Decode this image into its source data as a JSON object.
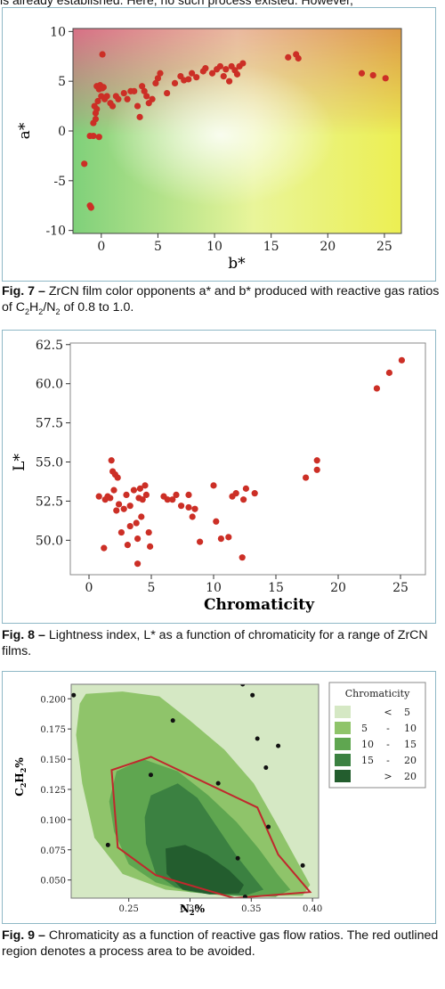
{
  "top_line": "is already established. Here, no such process existed. However,",
  "figures": [
    {
      "caption_label": "Fig. 7 –",
      "caption_text": "ZrCN film color opponents a* and b* produced with reactive gas ratios of C2H2/N2 of 0.8 to 1.0.",
      "caption_parts": {
        "before": "ZrCN film color opponents a* and b* produced with reactive gas ratios of C",
        "s1": "2",
        "mid1": "H",
        "s2": "2",
        "mid2": "/N",
        "s3": "2",
        "after": " of 0.8 to 1.0."
      }
    },
    {
      "caption_label": "Fig. 8 –",
      "caption_text": "Lightness index, L* as a function of chromaticity for a range of ZrCN films."
    },
    {
      "caption_label": "Fig. 9 –",
      "caption_text": "Chromaticity as a function of reactive gas flow ratios. The red outlined region denotes a process area to be avoided."
    }
  ],
  "chart_data": [
    {
      "type": "scatter",
      "xlabel": "b*",
      "ylabel": "a*",
      "xlim": [
        -2.5,
        26.5
      ],
      "ylim": [
        -10.3,
        10.3
      ],
      "xticks": [
        0,
        5,
        10,
        15,
        20,
        25
      ],
      "yticks": [
        -10,
        -5,
        0,
        5,
        10
      ],
      "background": "gradient: red top-left, orange top-right, green bottom-left, yellow bottom-right",
      "point_color": "#cc2f26",
      "points": [
        [
          -1.5,
          -3.3
        ],
        [
          -1.0,
          -7.5
        ],
        [
          -0.9,
          -7.7
        ],
        [
          -1.0,
          -0.5
        ],
        [
          -0.7,
          -0.5
        ],
        [
          -0.2,
          -0.6
        ],
        [
          -0.7,
          0.8
        ],
        [
          -0.5,
          1.2
        ],
        [
          -0.5,
          1.8
        ],
        [
          -0.6,
          2.5
        ],
        [
          -0.4,
          2.2
        ],
        [
          -0.3,
          3.0
        ],
        [
          -0.2,
          4.2
        ],
        [
          -0.4,
          4.5
        ],
        [
          -0.1,
          4.6
        ],
        [
          0.0,
          3.5
        ],
        [
          0.1,
          4.3
        ],
        [
          0.2,
          4.4
        ],
        [
          0.1,
          7.7
        ],
        [
          0.3,
          3.2
        ],
        [
          0.5,
          3.5
        ],
        [
          0.8,
          2.8
        ],
        [
          1.0,
          2.5
        ],
        [
          1.3,
          3.5
        ],
        [
          1.5,
          3.2
        ],
        [
          2.0,
          3.8
        ],
        [
          2.3,
          3.2
        ],
        [
          2.6,
          4.0
        ],
        [
          2.9,
          4.0
        ],
        [
          3.2,
          2.5
        ],
        [
          3.4,
          1.4
        ],
        [
          3.6,
          4.5
        ],
        [
          3.8,
          4.0
        ],
        [
          4.0,
          3.5
        ],
        [
          4.2,
          2.8
        ],
        [
          4.5,
          3.2
        ],
        [
          4.8,
          4.8
        ],
        [
          5.0,
          5.3
        ],
        [
          5.2,
          5.8
        ],
        [
          5.8,
          3.8
        ],
        [
          6.5,
          4.8
        ],
        [
          7.0,
          5.5
        ],
        [
          7.3,
          5.1
        ],
        [
          7.7,
          5.2
        ],
        [
          8.0,
          5.8
        ],
        [
          8.4,
          5.4
        ],
        [
          9.0,
          6.0
        ],
        [
          9.2,
          6.3
        ],
        [
          9.8,
          5.8
        ],
        [
          10.2,
          6.2
        ],
        [
          10.5,
          6.5
        ],
        [
          10.8,
          5.5
        ],
        [
          11.0,
          6.2
        ],
        [
          11.3,
          5.0
        ],
        [
          11.5,
          6.5
        ],
        [
          11.8,
          6.1
        ],
        [
          12.0,
          5.7
        ],
        [
          12.2,
          6.5
        ],
        [
          12.5,
          6.8
        ],
        [
          16.5,
          7.4
        ],
        [
          17.2,
          7.7
        ],
        [
          17.4,
          7.3
        ],
        [
          23.0,
          5.8
        ],
        [
          24.0,
          5.6
        ],
        [
          25.1,
          5.3
        ]
      ]
    },
    {
      "type": "scatter",
      "xlabel": "Chromaticity",
      "ylabel": "L*",
      "xlim": [
        -1.5,
        27.0
      ],
      "ylim": [
        47.8,
        62.6
      ],
      "xticks": [
        0,
        5,
        10,
        15,
        20,
        25
      ],
      "yticks": [
        50.0,
        52.5,
        55.0,
        57.5,
        60.0,
        62.5
      ],
      "ytick_labels": [
        "50.0",
        "52.5",
        "55.0",
        "57.5",
        "60.0",
        "62.5"
      ],
      "point_color": "#cc2f26",
      "points": [
        [
          0.8,
          52.8
        ],
        [
          1.2,
          49.5
        ],
        [
          1.3,
          52.6
        ],
        [
          1.5,
          52.8
        ],
        [
          1.7,
          52.7
        ],
        [
          1.8,
          55.1
        ],
        [
          1.9,
          54.4
        ],
        [
          2.0,
          53.2
        ],
        [
          2.1,
          54.2
        ],
        [
          2.2,
          51.9
        ],
        [
          2.3,
          54.0
        ],
        [
          2.4,
          52.3
        ],
        [
          2.6,
          50.5
        ],
        [
          2.8,
          52.0
        ],
        [
          3.0,
          52.9
        ],
        [
          3.1,
          49.7
        ],
        [
          3.3,
          50.9
        ],
        [
          3.3,
          52.2
        ],
        [
          3.6,
          53.2
        ],
        [
          3.8,
          51.1
        ],
        [
          3.9,
          50.1
        ],
        [
          3.9,
          48.5
        ],
        [
          4.0,
          52.7
        ],
        [
          4.1,
          53.3
        ],
        [
          4.2,
          51.5
        ],
        [
          4.3,
          52.6
        ],
        [
          4.5,
          53.5
        ],
        [
          4.6,
          52.9
        ],
        [
          4.8,
          50.5
        ],
        [
          4.9,
          49.6
        ],
        [
          6.0,
          52.8
        ],
        [
          6.3,
          52.6
        ],
        [
          6.7,
          52.6
        ],
        [
          7.0,
          52.9
        ],
        [
          7.4,
          52.2
        ],
        [
          8.0,
          52.1
        ],
        [
          8.0,
          52.9
        ],
        [
          8.3,
          51.5
        ],
        [
          8.5,
          52.0
        ],
        [
          8.9,
          49.9
        ],
        [
          10.0,
          53.5
        ],
        [
          10.2,
          51.2
        ],
        [
          10.6,
          50.1
        ],
        [
          11.2,
          50.2
        ],
        [
          11.5,
          52.8
        ],
        [
          11.8,
          53.0
        ],
        [
          12.3,
          48.9
        ],
        [
          12.4,
          52.6
        ],
        [
          12.6,
          53.3
        ],
        [
          13.3,
          53.0
        ],
        [
          17.4,
          54.0
        ],
        [
          18.3,
          55.1
        ],
        [
          18.3,
          54.5
        ],
        [
          23.1,
          59.7
        ],
        [
          24.1,
          60.7
        ],
        [
          25.1,
          61.5
        ]
      ]
    },
    {
      "type": "contour",
      "xlabel": "N2%",
      "ylabel": "C2H2%",
      "xlim": [
        0.203,
        0.405
      ],
      "ylim": [
        0.035,
        0.212
      ],
      "xticks": [
        0.25,
        0.3,
        0.35,
        0.4
      ],
      "xtick_labels": [
        "0.25",
        "0.30",
        "0.35",
        "0.40"
      ],
      "yticks": [
        0.05,
        0.075,
        0.1,
        0.125,
        0.15,
        0.175,
        0.2
      ],
      "ytick_labels": [
        "0.050",
        "0.075",
        "0.100",
        "0.125",
        "0.150",
        "0.175",
        "0.200"
      ],
      "legend_title": "Chromaticity",
      "legend": [
        {
          "lo": "",
          "sep": "<",
          "hi": "5",
          "color": "#d5e8c4"
        },
        {
          "lo": "5",
          "sep": "-",
          "hi": "10",
          "color": "#8fc46a"
        },
        {
          "lo": "10",
          "sep": "-",
          "hi": "15",
          "color": "#5fa650"
        },
        {
          "lo": "15",
          "sep": "-",
          "hi": "20",
          "color": "#3b8141"
        },
        {
          "lo": "",
          "sep": ">",
          "hi": "20",
          "color": "#235d2e"
        }
      ],
      "levels": [
        {
          "color": "#8fc46a",
          "polygon": [
            [
              0.21,
              0.196
            ],
            [
              0.215,
              0.204
            ],
            [
              0.245,
              0.206
            ],
            [
              0.275,
              0.202
            ],
            [
              0.3,
              0.182
            ],
            [
              0.328,
              0.158
            ],
            [
              0.352,
              0.13
            ],
            [
              0.37,
              0.098
            ],
            [
              0.385,
              0.07
            ],
            [
              0.398,
              0.046
            ],
            [
              0.392,
              0.037
            ],
            [
              0.33,
              0.037
            ],
            [
              0.28,
              0.042
            ],
            [
              0.245,
              0.055
            ],
            [
              0.222,
              0.085
            ],
            [
              0.212,
              0.13
            ],
            [
              0.207,
              0.17
            ]
          ]
        },
        {
          "color": "#5fa650",
          "polygon": [
            [
              0.24,
              0.14
            ],
            [
              0.262,
              0.15
            ],
            [
              0.29,
              0.14
            ],
            [
              0.315,
              0.12
            ],
            [
              0.338,
              0.098
            ],
            [
              0.356,
              0.076
            ],
            [
              0.372,
              0.054
            ],
            [
              0.382,
              0.042
            ],
            [
              0.37,
              0.036
            ],
            [
              0.33,
              0.037
            ],
            [
              0.3,
              0.04
            ],
            [
              0.272,
              0.048
            ],
            [
              0.25,
              0.063
            ],
            [
              0.238,
              0.09
            ],
            [
              0.234,
              0.115
            ]
          ]
        },
        {
          "color": "#3b8141",
          "polygon": [
            [
              0.268,
              0.12
            ],
            [
              0.29,
              0.13
            ],
            [
              0.306,
              0.118
            ],
            [
              0.322,
              0.094
            ],
            [
              0.338,
              0.07
            ],
            [
              0.352,
              0.052
            ],
            [
              0.36,
              0.042
            ],
            [
              0.345,
              0.037
            ],
            [
              0.312,
              0.039
            ],
            [
              0.288,
              0.044
            ],
            [
              0.272,
              0.055
            ],
            [
              0.264,
              0.08
            ],
            [
              0.263,
              0.102
            ]
          ]
        },
        {
          "color": "#235d2e",
          "polygon": [
            [
              0.28,
              0.076
            ],
            [
              0.296,
              0.079
            ],
            [
              0.314,
              0.071
            ],
            [
              0.332,
              0.058
            ],
            [
              0.344,
              0.046
            ],
            [
              0.34,
              0.039
            ],
            [
              0.316,
              0.038
            ],
            [
              0.294,
              0.042
            ],
            [
              0.281,
              0.055
            ]
          ]
        }
      ],
      "avoid_region": {
        "color": "#c0282d",
        "polygon": [
          [
            0.236,
            0.141
          ],
          [
            0.268,
            0.152
          ],
          [
            0.355,
            0.11
          ],
          [
            0.372,
            0.071
          ],
          [
            0.398,
            0.04
          ],
          [
            0.336,
            0.035
          ],
          [
            0.272,
            0.054
          ],
          [
            0.241,
            0.077
          ]
        ]
      },
      "design_points": [
        [
          0.205,
          0.203
        ],
        [
          0.268,
          0.137
        ],
        [
          0.286,
          0.182
        ],
        [
          0.323,
          0.13
        ],
        [
          0.343,
          0.212
        ],
        [
          0.351,
          0.203
        ],
        [
          0.355,
          0.167
        ],
        [
          0.362,
          0.143
        ],
        [
          0.372,
          0.161
        ],
        [
          0.364,
          0.094
        ],
        [
          0.339,
          0.068
        ],
        [
          0.345,
          0.036
        ],
        [
          0.233,
          0.079
        ],
        [
          0.392,
          0.062
        ]
      ]
    }
  ]
}
